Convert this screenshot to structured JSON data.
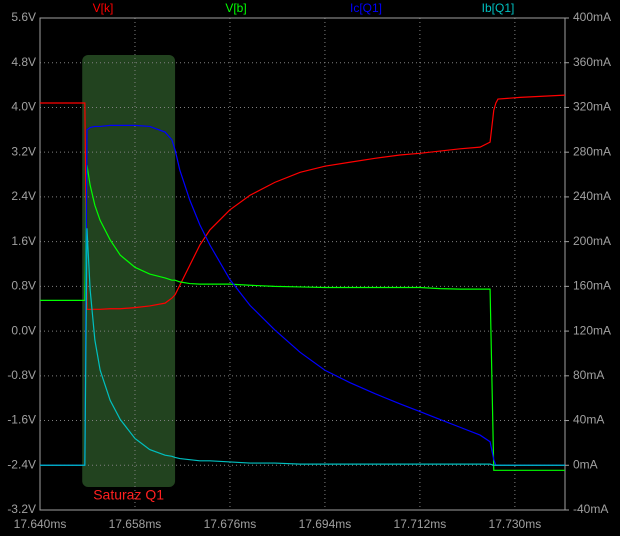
{
  "chart_data": {
    "type": "line",
    "x": [
      17.64,
      17.6485,
      17.6489,
      17.6495,
      17.6504,
      17.6514,
      17.6533,
      17.6552,
      17.658,
      17.6608,
      17.6637,
      17.665,
      17.6656,
      17.6665,
      17.6684,
      17.6703,
      17.6722,
      17.676,
      17.6798,
      17.6845,
      17.6893,
      17.694,
      17.6987,
      17.7035,
      17.7082,
      17.712,
      17.7158,
      17.7196,
      17.7234,
      17.7253,
      17.726,
      17.7264,
      17.7268,
      17.731,
      17.7395
    ],
    "series": [
      {
        "name": "V[k]",
        "color": "#ff0000",
        "axis": "y",
        "values": [
          4.08,
          4.08,
          0.39,
          0.39,
          0.39,
          0.39,
          0.4,
          0.4,
          0.42,
          0.45,
          0.5,
          0.59,
          0.65,
          0.82,
          1.18,
          1.54,
          1.81,
          2.17,
          2.43,
          2.66,
          2.84,
          2.95,
          3.02,
          3.09,
          3.15,
          3.18,
          3.22,
          3.26,
          3.29,
          3.38,
          3.95,
          4.08,
          4.15,
          4.18,
          4.22
        ]
      },
      {
        "name": "V[b]",
        "color": "#00ff00",
        "axis": "y",
        "values": [
          0.55,
          0.55,
          2.97,
          2.61,
          2.25,
          1.98,
          1.63,
          1.36,
          1.14,
          1.02,
          0.95,
          0.91,
          0.91,
          0.88,
          0.85,
          0.84,
          0.84,
          0.84,
          0.82,
          0.8,
          0.79,
          0.78,
          0.78,
          0.78,
          0.78,
          0.78,
          0.76,
          0.75,
          0.75,
          0.75,
          -2.49,
          -2.49,
          -2.49,
          -2.49,
          -2.49
        ]
      },
      {
        "name": "Ic[Q1]",
        "color": "#0000ff",
        "axis": "y2",
        "values": [
          0,
          0,
          300,
          302,
          303,
          303,
          304,
          304,
          304,
          303,
          298,
          291,
          282,
          264,
          237,
          215,
          197,
          166,
          143,
          121,
          101,
          85,
          74,
          64,
          55,
          48,
          41,
          34,
          27,
          21,
          5,
          0,
          0,
          0,
          0
        ]
      },
      {
        "name": "Ib[Q1]",
        "color": "#00c0c0",
        "axis": "y2",
        "values": [
          0,
          0,
          212,
          157,
          112,
          85,
          58,
          41,
          24,
          14,
          9,
          8,
          7,
          6,
          5,
          4,
          4,
          3,
          2,
          2,
          1,
          1,
          1,
          1,
          1,
          1,
          1,
          1,
          1,
          1,
          0,
          0,
          0,
          0,
          0
        ]
      }
    ],
    "xlim": [
      17.64,
      17.7395
    ],
    "xticks": [
      {
        "value": 17.64,
        "label": "17.640ms"
      },
      {
        "value": 17.658,
        "label": "17.658ms"
      },
      {
        "value": 17.676,
        "label": "17.676ms"
      },
      {
        "value": 17.694,
        "label": "17.694ms"
      },
      {
        "value": 17.712,
        "label": "17.712ms"
      },
      {
        "value": 17.73,
        "label": "17.730ms"
      }
    ],
    "ylim": [
      -3.2,
      5.6
    ],
    "yticks": [
      {
        "value": 5.6,
        "label": "5.6V"
      },
      {
        "value": 4.8,
        "label": "4.8V"
      },
      {
        "value": 4.0,
        "label": "4.0V"
      },
      {
        "value": 3.2,
        "label": "3.2V"
      },
      {
        "value": 2.4,
        "label": "2.4V"
      },
      {
        "value": 1.6,
        "label": "1.6V"
      },
      {
        "value": 0.8,
        "label": "0.8V"
      },
      {
        "value": 0.0,
        "label": "0.0V"
      },
      {
        "value": -0.8,
        "label": "-0.8V"
      },
      {
        "value": -1.6,
        "label": "-1.6V"
      },
      {
        "value": -2.4,
        "label": "-2.4V"
      },
      {
        "value": -3.2,
        "label": "-3.2V"
      }
    ],
    "y2lim": [
      -40,
      400
    ],
    "y2ticks": [
      {
        "value": 400,
        "label": "400mA"
      },
      {
        "value": 360,
        "label": "360mA"
      },
      {
        "value": 320,
        "label": "320mA"
      },
      {
        "value": 280,
        "label": "280mA"
      },
      {
        "value": 240,
        "label": "240mA"
      },
      {
        "value": 200,
        "label": "200mA"
      },
      {
        "value": 160,
        "label": "160mA"
      },
      {
        "value": 120,
        "label": "120mA"
      },
      {
        "value": 80,
        "label": "80mA"
      },
      {
        "value": 40,
        "label": "40mA"
      },
      {
        "value": 0,
        "label": "0mA"
      },
      {
        "value": -40,
        "label": "-40mA"
      }
    ],
    "grid": true,
    "annotations": [
      {
        "text": "Saturaz Q1",
        "x_range": [
          17.648,
          17.6656
        ]
      }
    ]
  }
}
